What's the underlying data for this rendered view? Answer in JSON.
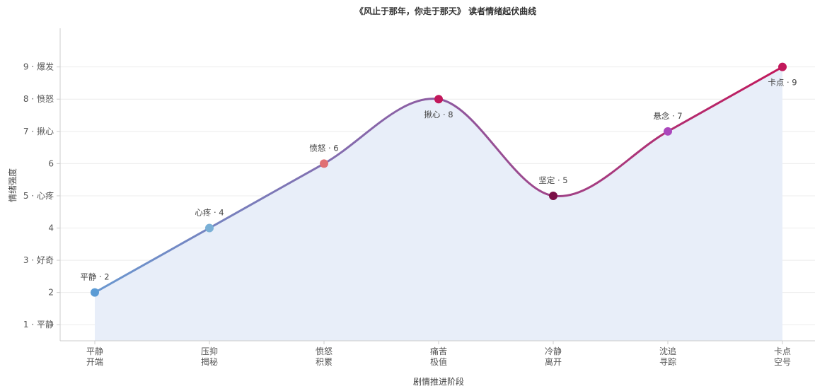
{
  "chart_data": {
    "type": "line",
    "title": "《风止于那年，你走于那天》 读者情绪起伏曲线",
    "xlabel": "剧情推进阶段",
    "ylabel": "情绪强度",
    "ylim": [
      0.5,
      10.2
    ],
    "grid": "horizontal",
    "categories": [
      [
        "平静",
        "开端"
      ],
      [
        "压抑",
        "揭秘"
      ],
      [
        "愤怒",
        "积累"
      ],
      [
        "痛苦",
        "极值"
      ],
      [
        "冷静",
        "离开"
      ],
      [
        "沈追",
        "寻踪"
      ],
      [
        "卡点",
        "空号"
      ]
    ],
    "y_ticks": [
      {
        "value": 1,
        "label": "1 · 平静"
      },
      {
        "value": 2,
        "label": "2"
      },
      {
        "value": 3,
        "label": "3 · 好奇"
      },
      {
        "value": 4,
        "label": "4"
      },
      {
        "value": 5,
        "label": "5 · 心疼"
      },
      {
        "value": 6,
        "label": "6"
      },
      {
        "value": 7,
        "label": "7 · 揪心"
      },
      {
        "value": 8,
        "label": "8 · 愤怒"
      },
      {
        "value": 9,
        "label": "9 · 爆发"
      }
    ],
    "series": [
      {
        "values": [
          2,
          4,
          6,
          8,
          5,
          7,
          9
        ],
        "point_labels": [
          "平静 · 2",
          "心疼 · 4",
          "愤怒 · 6",
          "揪心 · 8",
          "坚定 · 5",
          "悬念 · 7",
          "卡点 · 9"
        ],
        "label_positions": [
          "above",
          "above",
          "above",
          "below",
          "above",
          "above",
          "below"
        ],
        "point_colors": [
          "#5b9bd5",
          "#7ab0d6",
          "#e07074",
          "#c2185b",
          "#7b0f47",
          "#ab47bc",
          "#c2185b"
        ]
      }
    ],
    "colors": {
      "line_start": "#6a98d0",
      "line_mid": "#8e5aa0",
      "line_end": "#c2185b",
      "area_fill": "#e8eef9",
      "grid": "#ececec",
      "axis": "#cccccc"
    }
  }
}
